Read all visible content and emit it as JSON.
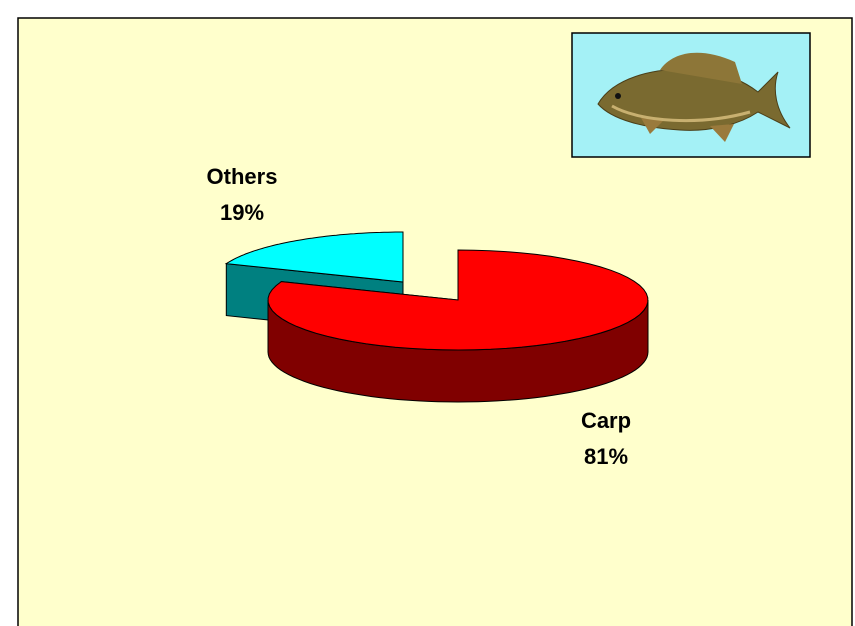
{
  "chart_data": {
    "type": "pie3d",
    "categories": [
      "Carp",
      "Others"
    ],
    "values": [
      81,
      19
    ],
    "value_labels": [
      "81%",
      "19%"
    ],
    "colors": [
      "#ff0000",
      "#00ffff"
    ]
  }
}
